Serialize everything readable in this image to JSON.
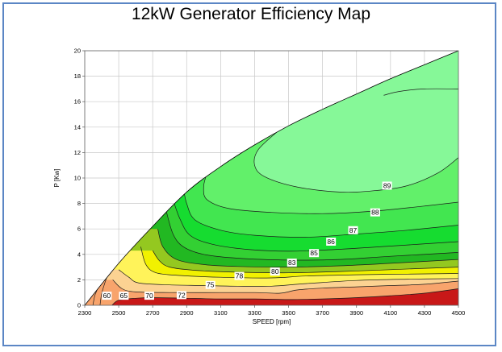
{
  "chart_data": {
    "type": "contour",
    "title": "12kW Generator Efficiency Map",
    "xlabel": "SPEED [rpm]",
    "ylabel": "P [Kw]",
    "xlim": [
      2300,
      4500
    ],
    "ylim": [
      0,
      20
    ],
    "x_ticks": [
      "2300",
      "2500",
      "2700",
      "2900",
      "3100",
      "3300",
      "3500",
      "3700",
      "3900",
      "4100",
      "4300",
      "4500"
    ],
    "y_ticks": [
      "0",
      "2",
      "4",
      "6",
      "8",
      "10",
      "12",
      "14",
      "16",
      "18",
      "20"
    ],
    "grid": true,
    "max_power_boundary": [
      [
        2300,
        0
      ],
      [
        2500,
        3.3
      ],
      [
        2700,
        6.2
      ],
      [
        2900,
        8.9
      ],
      [
        3100,
        10.9
      ],
      [
        3300,
        12.6
      ],
      [
        3500,
        14.1
      ],
      [
        3700,
        15.4
      ],
      [
        3900,
        16.6
      ],
      [
        4100,
        17.8
      ],
      [
        4300,
        18.9
      ],
      [
        4500,
        20
      ]
    ],
    "contour_levels": [
      60,
      65,
      70,
      72,
      75,
      78,
      80,
      83,
      85,
      86,
      87,
      88,
      89
    ],
    "level_colors": {
      "below_60": "#c81818",
      "60": "#e23a22",
      "65": "#f26b48",
      "70": "#f8a46c",
      "72": "#fcd292",
      "75": "#fff35a",
      "78": "#f1f100",
      "80": "#94c820",
      "83": "#22b822",
      "85": "#33d033",
      "86": "#16dc30",
      "87": "#42e650",
      "88": "#62f06a",
      "89": "#86f898"
    },
    "contour_lines": [
      {
        "level": 60,
        "points": [
          [
            2348,
            0
          ],
          [
            2358,
            0.7
          ],
          [
            2372,
            1.2
          ],
          [
            2390,
            1.9
          ],
          [
            2410,
            2.4
          ]
        ]
      },
      {
        "level": 65,
        "points": [
          [
            2390,
            0
          ],
          [
            2398,
            0.8
          ],
          [
            2412,
            1.5
          ],
          [
            2430,
            2.2
          ],
          [
            2452,
            2.8
          ],
          [
            2470,
            3.3
          ]
        ]
      },
      {
        "level": 70,
        "points": [
          [
            2460,
            0
          ],
          [
            2500,
            0.4
          ],
          [
            2600,
            0.55
          ],
          [
            2700,
            0.6
          ],
          [
            2900,
            0.55
          ],
          [
            3100,
            0.5
          ],
          [
            3300,
            0.5
          ],
          [
            3500,
            0.45
          ],
          [
            3700,
            0.5
          ],
          [
            3900,
            0.6
          ],
          [
            4100,
            0.75
          ],
          [
            4300,
            0.95
          ],
          [
            4500,
            1.3
          ]
        ]
      },
      {
        "level": 72,
        "points": [
          [
            2465,
            2.0
          ],
          [
            2520,
            1.3
          ],
          [
            2600,
            1.05
          ],
          [
            2800,
            1.0
          ],
          [
            3100,
            1.0
          ],
          [
            3300,
            1.0
          ],
          [
            3450,
            0.95
          ],
          [
            3550,
            1.2
          ],
          [
            3700,
            1.35
          ],
          [
            3900,
            1.45
          ],
          [
            4100,
            1.55
          ],
          [
            4300,
            1.65
          ],
          [
            4500,
            1.9
          ]
        ]
      },
      {
        "level": 75,
        "points": [
          [
            2500,
            2.8
          ],
          [
            2560,
            2.2
          ],
          [
            2620,
            1.75
          ],
          [
            2800,
            1.6
          ],
          [
            3000,
            1.55
          ],
          [
            3200,
            1.5
          ],
          [
            3400,
            1.5
          ],
          [
            3600,
            1.7
          ],
          [
            3900,
            1.95
          ],
          [
            4200,
            2.05
          ],
          [
            4500,
            2.1
          ]
        ]
      },
      {
        "level": 78,
        "points": [
          [
            2630,
            4.6
          ],
          [
            2660,
            3.2
          ],
          [
            2720,
            2.55
          ],
          [
            2850,
            2.35
          ],
          [
            3100,
            2.2
          ],
          [
            3400,
            2.15
          ],
          [
            3600,
            2.3
          ],
          [
            3900,
            2.4
          ],
          [
            4200,
            2.45
          ],
          [
            4500,
            2.5
          ]
        ]
      },
      {
        "level": 80,
        "points": [
          [
            2700,
            4.3
          ],
          [
            2740,
            3.5
          ],
          [
            2800,
            3.0
          ],
          [
            2950,
            2.75
          ],
          [
            3200,
            2.6
          ],
          [
            3500,
            2.55
          ],
          [
            3800,
            2.65
          ],
          [
            4100,
            2.8
          ],
          [
            4500,
            3.0
          ]
        ]
      },
      {
        "level": 83,
        "points": [
          [
            2730,
            6.0
          ],
          [
            2760,
            4.6
          ],
          [
            2840,
            3.6
          ],
          [
            3000,
            3.2
          ],
          [
            3200,
            3.05
          ],
          [
            3500,
            3.0
          ],
          [
            3800,
            3.1
          ],
          [
            4100,
            3.3
          ],
          [
            4500,
            3.6
          ]
        ]
      },
      {
        "level": 85,
        "points": [
          [
            2780,
            7.4
          ],
          [
            2820,
            5.6
          ],
          [
            2880,
            4.6
          ],
          [
            3000,
            4.0
          ],
          [
            3200,
            3.7
          ],
          [
            3500,
            3.55
          ],
          [
            3800,
            3.6
          ],
          [
            4100,
            3.85
          ],
          [
            4500,
            4.15
          ]
        ]
      },
      {
        "level": 86,
        "points": [
          [
            2820,
            8.3
          ],
          [
            2860,
            6.8
          ],
          [
            2920,
            5.5
          ],
          [
            3050,
            4.8
          ],
          [
            3250,
            4.4
          ],
          [
            3500,
            4.25
          ],
          [
            3800,
            4.4
          ],
          [
            4100,
            4.65
          ],
          [
            4500,
            5.0
          ]
        ]
      },
      {
        "level": 87,
        "points": [
          [
            2880,
            9.3
          ],
          [
            2900,
            8.0
          ],
          [
            2950,
            6.7
          ],
          [
            3100,
            5.9
          ],
          [
            3300,
            5.5
          ],
          [
            3600,
            5.35
          ],
          [
            3900,
            5.6
          ],
          [
            4200,
            5.9
          ],
          [
            4500,
            6.3
          ]
        ]
      },
      {
        "level": 88,
        "points": [
          [
            3020,
            10.4
          ],
          [
            3000,
            9.3
          ],
          [
            3020,
            8.3
          ],
          [
            3150,
            7.6
          ],
          [
            3400,
            7.3
          ],
          [
            3700,
            7.2
          ],
          [
            4000,
            7.4
          ],
          [
            4300,
            7.8
          ],
          [
            4500,
            8.1
          ]
        ]
      },
      {
        "level": 89,
        "points": [
          [
            3430,
            13.6
          ],
          [
            3320,
            12.2
          ],
          [
            3300,
            11.0
          ],
          [
            3360,
            10.1
          ],
          [
            3550,
            9.3
          ],
          [
            3800,
            8.9
          ],
          [
            4000,
            9.0
          ],
          [
            4200,
            9.4
          ],
          [
            4380,
            10.4
          ],
          [
            4500,
            11.6
          ]
        ]
      },
      {
        "level": 89,
        "points": [
          [
            4060,
            16.5
          ],
          [
            4150,
            16.8
          ],
          [
            4300,
            17.0
          ],
          [
            4500,
            17.0
          ]
        ]
      }
    ],
    "annotations": [
      {
        "label": "60",
        "x": 2430,
        "y": 0.75
      },
      {
        "label": "65",
        "x": 2530,
        "y": 0.75
      },
      {
        "label": "70",
        "x": 2680,
        "y": 0.75
      },
      {
        "label": "72",
        "x": 2870,
        "y": 0.8
      },
      {
        "label": "75",
        "x": 3040,
        "y": 1.6
      },
      {
        "label": "78",
        "x": 3210,
        "y": 2.3
      },
      {
        "label": "80",
        "x": 3420,
        "y": 2.65
      },
      {
        "label": "83",
        "x": 3520,
        "y": 3.35
      },
      {
        "label": "85",
        "x": 3650,
        "y": 4.1
      },
      {
        "label": "86",
        "x": 3750,
        "y": 5.0
      },
      {
        "label": "87",
        "x": 3880,
        "y": 5.9
      },
      {
        "label": "88",
        "x": 4010,
        "y": 7.3
      },
      {
        "label": "89",
        "x": 4080,
        "y": 9.4
      }
    ]
  }
}
